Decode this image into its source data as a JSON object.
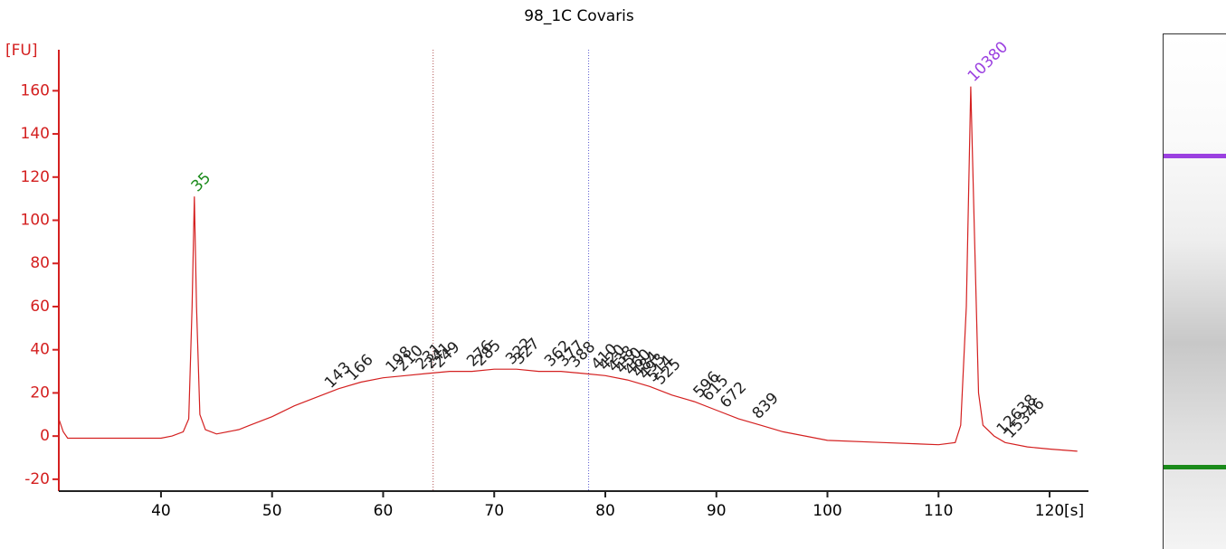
{
  "chart_data": {
    "type": "line",
    "title": "98_1C Covaris",
    "x_label": "[s]",
    "y_label": "[FU]",
    "x": [
      30.8,
      31.2,
      31.6,
      35,
      40,
      41,
      42,
      42.5,
      42.8,
      43,
      43.2,
      43.5,
      44,
      45,
      47,
      48,
      50,
      52,
      54,
      56,
      58,
      60,
      62,
      64,
      66,
      68,
      70,
      72,
      74,
      76,
      78,
      80,
      82,
      84,
      86,
      88,
      90,
      92,
      94,
      96,
      98,
      100,
      105,
      110,
      111.5,
      112,
      112.5,
      112.9,
      113.2,
      113.6,
      114,
      115,
      116,
      118,
      120,
      122.5
    ],
    "y": [
      8,
      2,
      -1,
      -1,
      -1,
      0,
      2,
      8,
      60,
      111,
      60,
      10,
      3,
      1,
      3,
      5,
      9,
      14,
      18,
      22,
      25,
      27,
      28,
      29,
      30,
      30,
      31,
      31,
      30,
      30,
      29,
      28,
      26,
      23,
      19,
      16,
      12,
      8,
      5,
      2,
      0,
      -2,
      -3,
      -4,
      -3,
      5,
      60,
      162,
      100,
      20,
      5,
      0,
      -3,
      -5,
      -6,
      -7
    ],
    "color": "#d42020",
    "peaks": [
      {
        "time": 43,
        "size": 35,
        "color": "#1a8a1a"
      },
      {
        "time": 55,
        "size": 143,
        "color": "#222"
      },
      {
        "time": 57,
        "size": 166,
        "color": "#222"
      },
      {
        "time": 60.5,
        "size": 198,
        "color": "#222"
      },
      {
        "time": 61.5,
        "size": 210,
        "color": "#222"
      },
      {
        "time": 63.2,
        "size": 231,
        "color": "#222"
      },
      {
        "time": 64,
        "size": 241,
        "color": "#222"
      },
      {
        "time": 64.8,
        "size": 249,
        "color": "#222"
      },
      {
        "time": 67.8,
        "size": 276,
        "color": "#222"
      },
      {
        "time": 68.5,
        "size": 285,
        "color": "#222"
      },
      {
        "time": 71.3,
        "size": 322,
        "color": "#222"
      },
      {
        "time": 72,
        "size": 327,
        "color": "#222"
      },
      {
        "time": 74.8,
        "size": 362,
        "color": "#222"
      },
      {
        "time": 76,
        "size": 377,
        "color": "#222"
      },
      {
        "time": 77,
        "size": 388,
        "color": "#222"
      },
      {
        "time": 79,
        "size": 410,
        "color": "#222"
      },
      {
        "time": 79.7,
        "size": 420,
        "color": "#222"
      },
      {
        "time": 80.5,
        "size": 438,
        "color": "#222"
      },
      {
        "time": 81.2,
        "size": 450,
        "color": "#222"
      },
      {
        "time": 82,
        "size": 460,
        "color": "#222"
      },
      {
        "time": 82.7,
        "size": 484,
        "color": "#222"
      },
      {
        "time": 83.3,
        "size": 493,
        "color": "#222"
      },
      {
        "time": 84,
        "size": 514,
        "color": "#222"
      },
      {
        "time": 84.7,
        "size": 525,
        "color": "#222"
      },
      {
        "time": 88.2,
        "size": 596,
        "color": "#222"
      },
      {
        "time": 89,
        "size": 615,
        "color": "#222"
      },
      {
        "time": 90.6,
        "size": 672,
        "color": "#222"
      },
      {
        "time": 93.5,
        "size": 839,
        "color": "#222"
      },
      {
        "time": 112.9,
        "size": 10380,
        "color": "#9b40e0"
      },
      {
        "time": 115.5,
        "size": 12638,
        "color": "#222"
      },
      {
        "time": 116.2,
        "size": 15346,
        "color": "#222"
      }
    ],
    "region_lines": [
      64.5,
      78.5
    ],
    "xlim": [
      30.8,
      123.5
    ],
    "ylim": [
      -25.5,
      179
    ],
    "xticks": [
      40,
      50,
      60,
      70,
      80,
      90,
      100,
      110,
      120
    ],
    "yticks": [
      -20,
      0,
      20,
      40,
      60,
      80,
      100,
      120,
      140,
      160
    ]
  }
}
